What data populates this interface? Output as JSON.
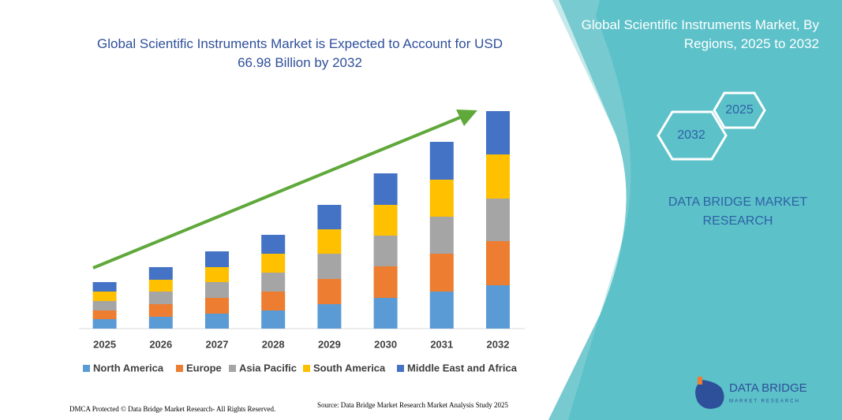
{
  "chart_data": {
    "type": "stacked_bar",
    "title": "Global Scientific Instruments Market is Expected to Account for USD 66.98 Billion by 2032",
    "categories": [
      "2025",
      "2026",
      "2027",
      "2028",
      "2029",
      "2030",
      "2031",
      "2032"
    ],
    "series": [
      {
        "name": "North America",
        "color": "#5b9bd5",
        "values": [
          12,
          15,
          19,
          23,
          31,
          39,
          47,
          55
        ]
      },
      {
        "name": "Europe",
        "color": "#ed7d31",
        "values": [
          11,
          16,
          20,
          24,
          32,
          40,
          48,
          56
        ]
      },
      {
        "name": "Asia Pacific",
        "color": "#a5a5a5",
        "values": [
          12,
          16,
          20,
          24,
          32,
          39,
          47,
          54
        ]
      },
      {
        "name": "South America",
        "color": "#ffc000",
        "values": [
          12,
          15,
          19,
          24,
          31,
          39,
          47,
          56
        ]
      },
      {
        "name": "Middle East and Africa",
        "color": "#4472c4",
        "values": [
          12,
          16,
          20,
          24,
          31,
          40,
          48,
          55
        ]
      }
    ],
    "ylim": [
      0,
      280
    ]
  },
  "panel": {
    "title": "Global Scientific Instruments Market, By Regions, 2025 to 2032",
    "hex_labels": [
      "2025",
      "2032"
    ],
    "brand": "DATA BRIDGE MARKET RESEARCH"
  },
  "footer": {
    "left": "DMCA Protected © Data Bridge Market Research- All Rights Reserved.",
    "source": "Source: Data Bridge Market Research Market Analysis Study 2025"
  },
  "logo": {
    "name": "DATA BRIDGE",
    "tagline": "MARKET RESEARCH"
  }
}
